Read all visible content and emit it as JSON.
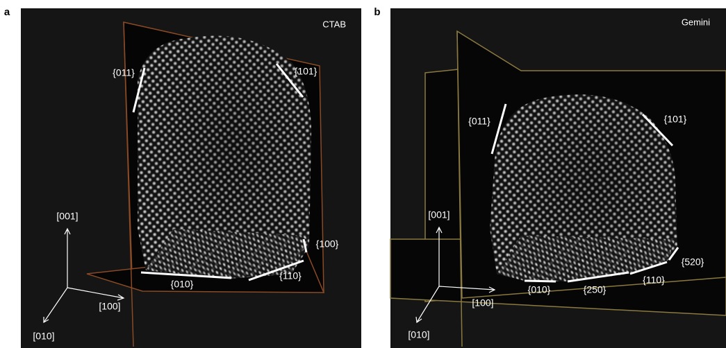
{
  "panels": [
    {
      "label": "a",
      "title": "CTAB",
      "facets": [
        "{011}",
        "{101}",
        "{100}",
        "{110}",
        "{010}"
      ],
      "axes": [
        "[001]",
        "[100]",
        "[010]"
      ]
    },
    {
      "label": "b",
      "title": "Gemini",
      "facets": [
        "{011}",
        "{101}",
        "{520}",
        "{110}",
        "{250}",
        "{010}"
      ],
      "axes": [
        "[001]",
        "[100]",
        "[010]"
      ]
    }
  ]
}
